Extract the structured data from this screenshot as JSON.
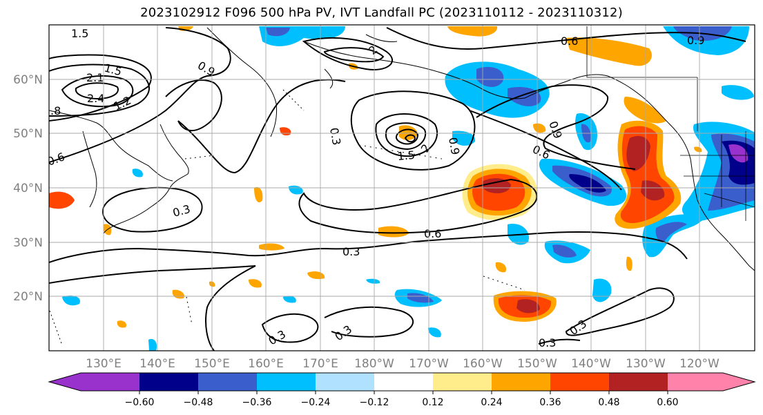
{
  "title": "2023102912 F096 500 hPa PV, IVT Landfall PC (2023110112 - 2023110312)",
  "lon_ticks": [
    "130°E",
    "140°E",
    "150°E",
    "160°E",
    "170°E",
    "180°W",
    "170°W",
    "160°W",
    "150°W",
    "140°W",
    "130°W",
    "120°W"
  ],
  "lat_ticks": [
    "60°N",
    "50°N",
    "40°N",
    "30°N",
    "20°N"
  ],
  "colorbar": {
    "labels": [
      "−0.60",
      "−0.48",
      "−0.36",
      "−0.24",
      "−0.12",
      "0.12",
      "0.24",
      "0.36",
      "0.48",
      "0.60"
    ],
    "colors": [
      "#9932cc",
      "#00008b",
      "#3a5fcd",
      "#00bfff",
      "#b0e2ff",
      "#ffffff",
      "#ffec8b",
      "#ffa500",
      "#ff4500",
      "#b22222",
      "#ff82ab"
    ]
  },
  "contour_labels": [
    "1.5",
    "2",
    "0.6",
    "0.9",
    "1.5",
    "2.1",
    "2.4",
    "1.2",
    ".8",
    "0.6",
    "0.9",
    "0.3",
    "1.5",
    "2",
    "0.9",
    "0.9",
    "0.6",
    "0.3",
    "0.6",
    "0.3",
    "0.3",
    "0.3",
    "0.3",
    "0.3"
  ]
}
